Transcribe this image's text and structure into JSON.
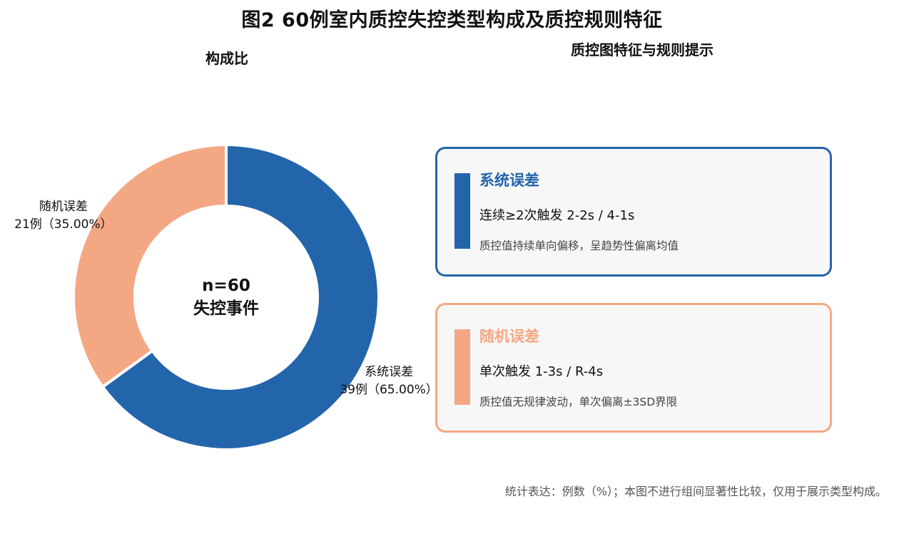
{
  "title": "图2 60例室内质控失控类型构成及质控规则特征",
  "left_panel": {
    "subtitle": "构成比"
  },
  "right_panel": {
    "subtitle": "质控图特征与规则提示"
  },
  "chart_data": {
    "type": "pie",
    "subtype": "donut",
    "center_text": [
      "n=60",
      "失控事件"
    ],
    "slices": [
      {
        "category": "系统误差",
        "label_line1": "系统误差",
        "label_line2": "39例（65.00%）",
        "count": 39,
        "percent": 65.0,
        "color": "#2365ab"
      },
      {
        "category": "随机误差",
        "label_line1": "随机误差",
        "label_line2": "21例（35.00%）",
        "count": 21,
        "percent": 35.0,
        "color": "#f3a883"
      }
    ]
  },
  "cards": [
    {
      "title": "系统误差",
      "rule": "连续≥2次触发 2-2s / 4-1s",
      "description": "质控值持续单向偏移，呈趋势性偏离均值",
      "color": "#2365ab"
    },
    {
      "title": "随机误差",
      "rule": "单次触发 1-3s / R-4s",
      "description": "质控值无规律波动，单次偏离±3SD界限",
      "color": "#f3a883"
    }
  ],
  "footnote": "统计表达：例数（%）；本图不进行组间显著性比较，仅用于展示类型构成。"
}
